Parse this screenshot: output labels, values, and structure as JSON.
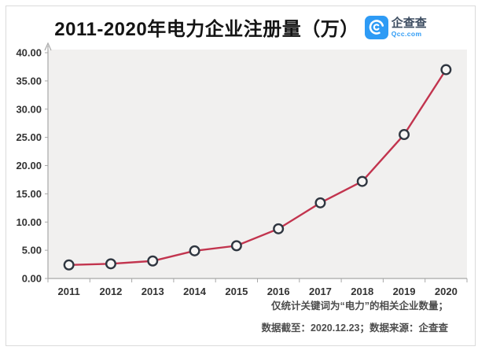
{
  "header": {
    "title": "2011-2020年电力企业注册量（万）",
    "logo": {
      "brand": "企查查",
      "domain": "Qcc.com",
      "brand_color": "#2e9bf5",
      "brand_text_color": "#3d4d61"
    }
  },
  "chart_data": {
    "type": "line",
    "title": "2011-2020年电力企业注册量（万）",
    "categories": [
      "2011",
      "2012",
      "2013",
      "2014",
      "2015",
      "2016",
      "2017",
      "2018",
      "2019",
      "2020"
    ],
    "series": [
      {
        "name": "电力企业注册量（万）",
        "values": [
          2.4,
          2.6,
          3.1,
          4.9,
          5.8,
          8.8,
          13.4,
          17.2,
          25.5,
          37.0
        ]
      }
    ],
    "xlabel": "",
    "ylabel": "",
    "ylim": [
      0,
      40
    ],
    "y_ticks": [
      "0.00",
      "5.00",
      "10.00",
      "15.00",
      "20.00",
      "25.00",
      "30.00",
      "35.00",
      "40.00"
    ],
    "grid": false,
    "legend": "none",
    "plot_bg": "#f1f0ef",
    "axis_color": "#a8a8a8",
    "line_color": "#c2344e",
    "marker": {
      "shape": "circle",
      "stroke": "#2f3640",
      "fill": "#f7f6f5"
    }
  },
  "footer": {
    "note1": "仅统计关键词为“电力”的相关企业数量；",
    "note2": "数据截至：2020.12.23；数据来源：企查查"
  }
}
